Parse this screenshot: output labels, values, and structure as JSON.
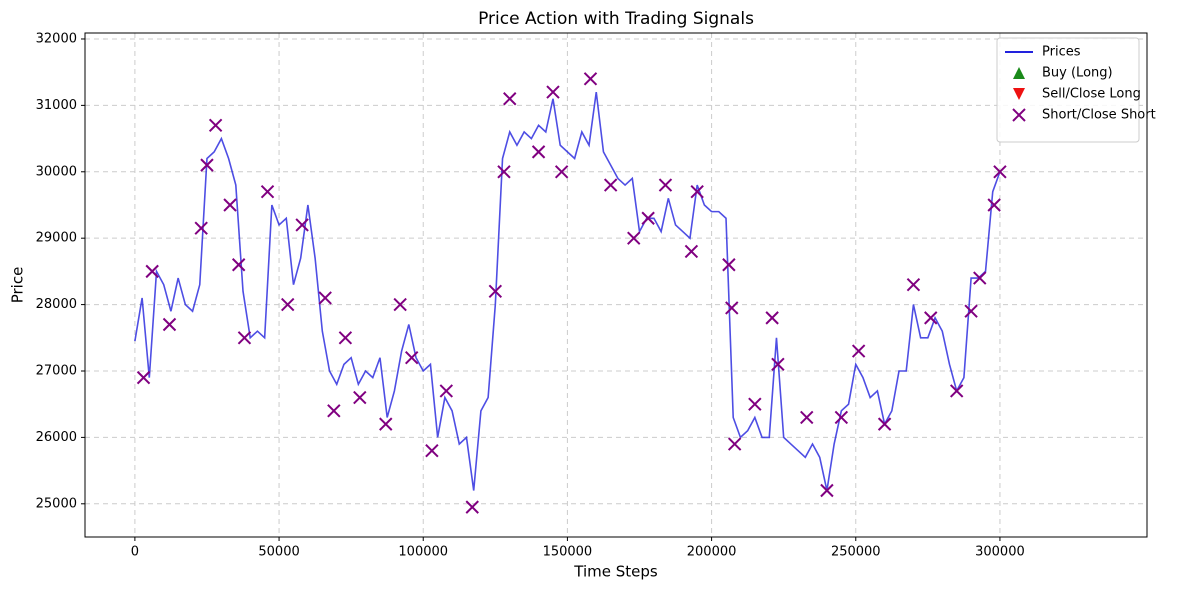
{
  "chart_data": {
    "type": "line",
    "title": "Price Action with Trading Signals",
    "x_label": "Time Steps",
    "y_label": "Price",
    "xlim": [
      -17300,
      351000
    ],
    "ylim": [
      24500,
      32090
    ],
    "xticks": [
      0,
      50000,
      100000,
      150000,
      200000,
      250000,
      300000
    ],
    "yticks": [
      25000,
      26000,
      27000,
      28000,
      29000,
      30000,
      31000,
      32000
    ],
    "grid": true,
    "legend": "upper right",
    "series": [
      {
        "name": "Prices",
        "kind": "line",
        "color": "#2222dd",
        "x": [
          0,
          2500,
          5000,
          7500,
          10000,
          12500,
          15000,
          17500,
          20000,
          22500,
          25000,
          27500,
          30000,
          32500,
          35000,
          37500,
          40000,
          42500,
          45000,
          47500,
          50000,
          52500,
          55000,
          57500,
          60000,
          62500,
          65000,
          67500,
          70000,
          72500,
          75000,
          77500,
          80000,
          82500,
          85000,
          87500,
          90000,
          92500,
          95000,
          97500,
          100000,
          102500,
          105000,
          107500,
          110000,
          112500,
          115000,
          117500,
          120000,
          122500,
          125000,
          127500,
          130000,
          132500,
          135000,
          137500,
          140000,
          142500,
          145000,
          147500,
          150000,
          152500,
          155000,
          157500,
          160000,
          162500,
          165000,
          167500,
          170000,
          172500,
          175000,
          177500,
          180000,
          182500,
          185000,
          187500,
          190000,
          192500,
          195000,
          197500,
          200000,
          202500,
          205000,
          207500,
          210000,
          212500,
          215000,
          217500,
          220000,
          222500,
          225000,
          227500,
          230000,
          232500,
          235000,
          237500,
          240000,
          242500,
          245000,
          247500,
          250000,
          252500,
          255000,
          257500,
          260000,
          262500,
          265000,
          267500,
          270000,
          272500,
          275000,
          277500,
          280000,
          282500,
          285000,
          287500,
          290000,
          292500,
          295000,
          297500,
          300000
        ],
        "values": [
          27450,
          28100,
          26900,
          28500,
          28300,
          27900,
          28400,
          28000,
          27900,
          28300,
          30200,
          30300,
          30500,
          30200,
          29800,
          28200,
          27500,
          27600,
          27500,
          29500,
          29200,
          29300,
          28300,
          28700,
          29500,
          28700,
          27600,
          27000,
          26800,
          27100,
          27200,
          26800,
          27000,
          26900,
          27200,
          26300,
          26700,
          27300,
          27700,
          27200,
          27000,
          27100,
          26000,
          26600,
          26400,
          25900,
          26000,
          25200,
          26400,
          26600,
          28000,
          30200,
          30600,
          30400,
          30600,
          30500,
          30700,
          30600,
          31100,
          30400,
          30300,
          30200,
          30600,
          30400,
          31200,
          30300,
          30100,
          29900,
          29800,
          29900,
          29100,
          29300,
          29300,
          29100,
          29600,
          29200,
          29100,
          29000,
          29800,
          29500,
          29400,
          29400,
          29300,
          26300,
          26000,
          26100,
          26300,
          26000,
          26000,
          27500,
          26000,
          25900,
          25800,
          25700,
          25900,
          25700,
          25200,
          25900,
          26400,
          26500,
          27100,
          26900,
          26600,
          26700,
          26200,
          26400,
          27000,
          27000,
          28000,
          27500,
          27500,
          27800,
          27600,
          27100,
          26700,
          26900,
          28400,
          28400,
          28500,
          29700,
          30000
        ]
      },
      {
        "name": "Buy (Long)",
        "kind": "triangle-up",
        "color": "#1a8a1a",
        "x": [],
        "values": []
      },
      {
        "name": "Sell/Close Long",
        "kind": "triangle-down",
        "color": "#ee1111",
        "x": [],
        "values": []
      },
      {
        "name": "Short/Close Short",
        "kind": "cross",
        "color": "#800080",
        "x": [
          3000,
          6000,
          12000,
          23000,
          25000,
          28000,
          33000,
          36000,
          38000,
          46000,
          53000,
          58000,
          66000,
          69000,
          73000,
          78000,
          87000,
          92000,
          96000,
          103000,
          108000,
          117000,
          125000,
          128000,
          130000,
          140000,
          145000,
          148000,
          158000,
          165000,
          173000,
          178000,
          184000,
          193000,
          195000,
          206000,
          207000,
          208000,
          215000,
          221000,
          223000,
          233000,
          240000,
          245000,
          251000,
          260000,
          270000,
          276000,
          285000,
          290000,
          293000,
          298000,
          300000
        ],
        "values": [
          26900,
          28500,
          27700,
          29150,
          30100,
          30700,
          29500,
          28600,
          27500,
          29700,
          28000,
          29200,
          28100,
          26400,
          27500,
          26600,
          26200,
          28000,
          27200,
          25800,
          26700,
          24950,
          28200,
          30000,
          31100,
          30300,
          31200,
          30000,
          31400,
          29800,
          29000,
          29300,
          29800,
          28800,
          29700,
          28600,
          27950,
          25900,
          26500,
          27800,
          27100,
          26300,
          25200,
          26300,
          27300,
          26200,
          28300,
          27800,
          26700,
          27900,
          28400,
          29500,
          30000
        ]
      }
    ]
  }
}
